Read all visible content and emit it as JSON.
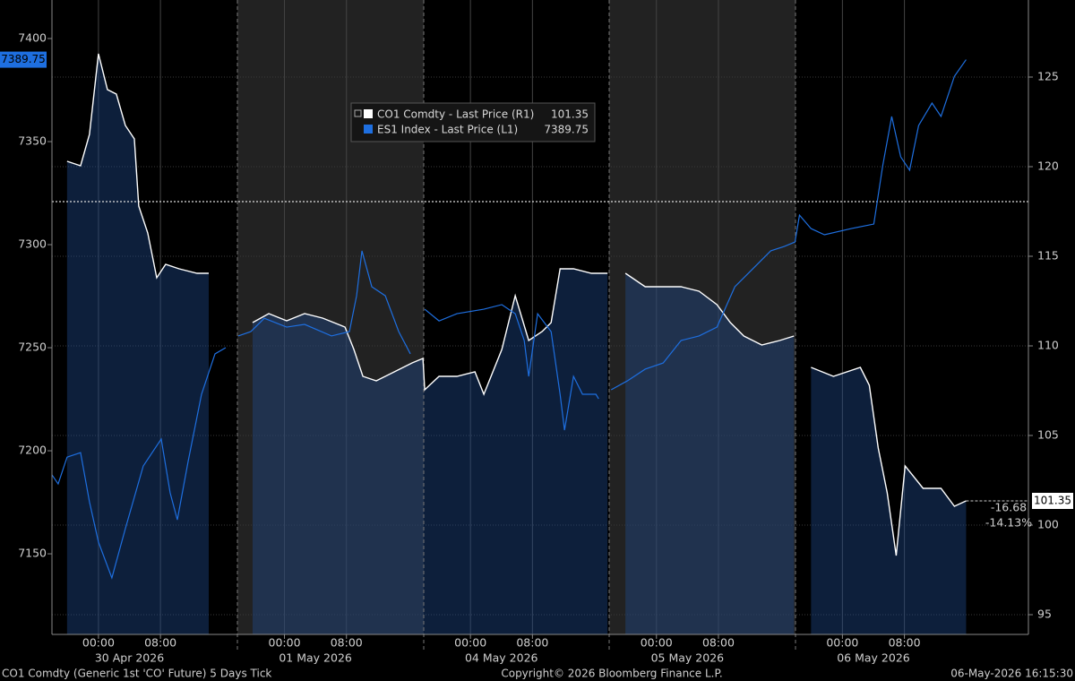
{
  "chart_data": {
    "type": "line",
    "xlim": [
      -6,
      120
    ],
    "ylim": [
      7110.9,
      7418.7
    ],
    "y2lim": [
      93.9,
      129.3
    ],
    "yticks": [
      7150,
      7200,
      7250,
      7300,
      7350,
      7400
    ],
    "y2ticks": [
      95,
      100,
      105,
      110,
      115,
      120,
      125
    ],
    "xticks": [
      {
        "value": 0,
        "label": "00:00"
      },
      {
        "value": 8,
        "label": "08:00"
      },
      {
        "value": 24,
        "label": "00:00"
      },
      {
        "value": 32,
        "label": "08:00"
      },
      {
        "value": 48,
        "label": "00:00"
      },
      {
        "value": 56,
        "label": "08:00"
      },
      {
        "value": 72,
        "label": "00:00"
      },
      {
        "value": 80,
        "label": "08:00"
      },
      {
        "value": 96,
        "label": "00:00"
      },
      {
        "value": 104,
        "label": "08:00"
      }
    ],
    "date_labels": [
      {
        "value": 4,
        "label": "30 Apr 2026"
      },
      {
        "value": 28,
        "label": "01 May 2026"
      },
      {
        "value": 52,
        "label": "04 May 2026"
      },
      {
        "value": 76,
        "label": "05 May 2026"
      },
      {
        "value": 100,
        "label": "06 May 2026"
      }
    ],
    "grid": true,
    "series": [
      {
        "name": "CO1 Comdty - Last Price (R1)",
        "color": "#ffffff",
        "axis": "y2",
        "x": [
          -4.05,
          -2.31,
          -1.16,
          0,
          1.16,
          2.31,
          3.47,
          4.63,
          5.2,
          6.36,
          7.52,
          8.67,
          10.41,
          12.72,
          14.23,
          16,
          19.89,
          21.98,
          24.29,
          26.6,
          28.92,
          31.81,
          32.96,
          34.12,
          35.85,
          38.17,
          40.48,
          41.87,
          42.1,
          43.95,
          46.26,
          48.58,
          49.73,
          52.05,
          53.78,
          55.52,
          57.25,
          58.41,
          59.57,
          61.3,
          63.61,
          65.69,
          66.5,
          68.0,
          70.55,
          72.87,
          75.18,
          77.5,
          79.81,
          81.54,
          83.28,
          85.59,
          87.9,
          89.75,
          90.5,
          91.95,
          94.84,
          98.31,
          99.47,
          100.62,
          101.78,
          102.94,
          104.09,
          106.41,
          108.72,
          110.45,
          111.96
        ],
        "values": [
          120.3,
          120.05,
          121.8,
          126.3,
          124.3,
          124.05,
          122.3,
          121.55,
          117.8,
          116.3,
          113.8,
          114.55,
          114.3,
          114.05,
          114.05,
          null,
          111.3,
          111.8,
          111.4,
          111.8,
          111.55,
          111.05,
          109.8,
          108.3,
          108.05,
          108.55,
          109.05,
          109.3,
          107.55,
          108.3,
          108.3,
          108.55,
          107.3,
          109.8,
          112.8,
          110.3,
          110.8,
          111.3,
          114.3,
          114.3,
          114.05,
          114.05,
          null,
          114.05,
          113.3,
          113.3,
          113.3,
          113.05,
          112.3,
          111.3,
          110.55,
          110.05,
          110.3,
          110.55,
          null,
          108.8,
          108.3,
          108.8,
          107.8,
          104.3,
          101.8,
          98.3,
          103.3,
          102.05,
          102.05,
          101.05,
          101.35
        ]
      },
      {
        "name": "ES1 Index - Last Price (L1)",
        "color": "#1e6fe0",
        "axis": "y",
        "x": [
          -6.0,
          -5.2,
          -4.05,
          -2.31,
          -1.16,
          0,
          1.73,
          3.47,
          5.78,
          8.1,
          9.25,
          10.18,
          11.57,
          13.3,
          15.04,
          16.42,
          17,
          18.04,
          19.66,
          21.4,
          24.29,
          26.6,
          30.07,
          32.38,
          33.31,
          34.0,
          35.27,
          37.01,
          38.75,
          40.25,
          41,
          42.1,
          43.95,
          46.26,
          49.73,
          52.05,
          53.78,
          54.94,
          55.52,
          56.67,
          58.41,
          59.57,
          60.14,
          61.3,
          62.46,
          64.19,
          64.54,
          65.5,
          66.16,
          68.24,
          70.55,
          72.87,
          75.18,
          77.5,
          79.81,
          82.12,
          84.44,
          86.75,
          88.49,
          89.88,
          90.46,
          91.95,
          93.68,
          97.15,
          100.05,
          101.2,
          102.36,
          103.52,
          104.67,
          105.83,
          107.56,
          108.72,
          110.45,
          111.96
        ],
        "values": [
          7188.3,
          7183.9,
          7196.9,
          7199.1,
          7175.2,
          7155.7,
          7138.3,
          7162.2,
          7192.6,
          7205.7,
          7179.6,
          7166.5,
          7194.8,
          7227.4,
          7247.0,
          7250.0,
          null,
          7255.7,
          7257.8,
          7264.3,
          7260.0,
          7261.3,
          7255.7,
          7257.8,
          7275.2,
          7297.0,
          7279.6,
          7275.2,
          7257.8,
          7247.0,
          null,
          7268.7,
          7263.0,
          7266.5,
          7268.7,
          7270.9,
          7266.5,
          7253.5,
          7236.1,
          7266.5,
          7257.8,
          7227.4,
          7210.0,
          7236.1,
          7227.4,
          7227.4,
          7225.2,
          null,
          7229.6,
          7233.9,
          7239.6,
          7242.6,
          7253.5,
          7255.7,
          7260.0,
          7279.6,
          7288.3,
          7297.0,
          7299.1,
          7301.3,
          7314.3,
          7307.8,
          7304.8,
          7307.8,
          7310.0,
          7338.3,
          7362.2,
          7342.6,
          7336.1,
          7357.8,
          7368.7,
          7362.2,
          7381.7,
          7389.75
        ]
      }
    ],
    "annotations": [
      "-16.68",
      "-14.13%"
    ],
    "footer": {
      "left": "CO1 Comdty (Generic 1st 'CO' Future) 5 Days Tick",
      "center": "Copyright© 2026 Bloomberg Finance L.P.",
      "right": "06-May-2026 16:15:30"
    }
  }
}
